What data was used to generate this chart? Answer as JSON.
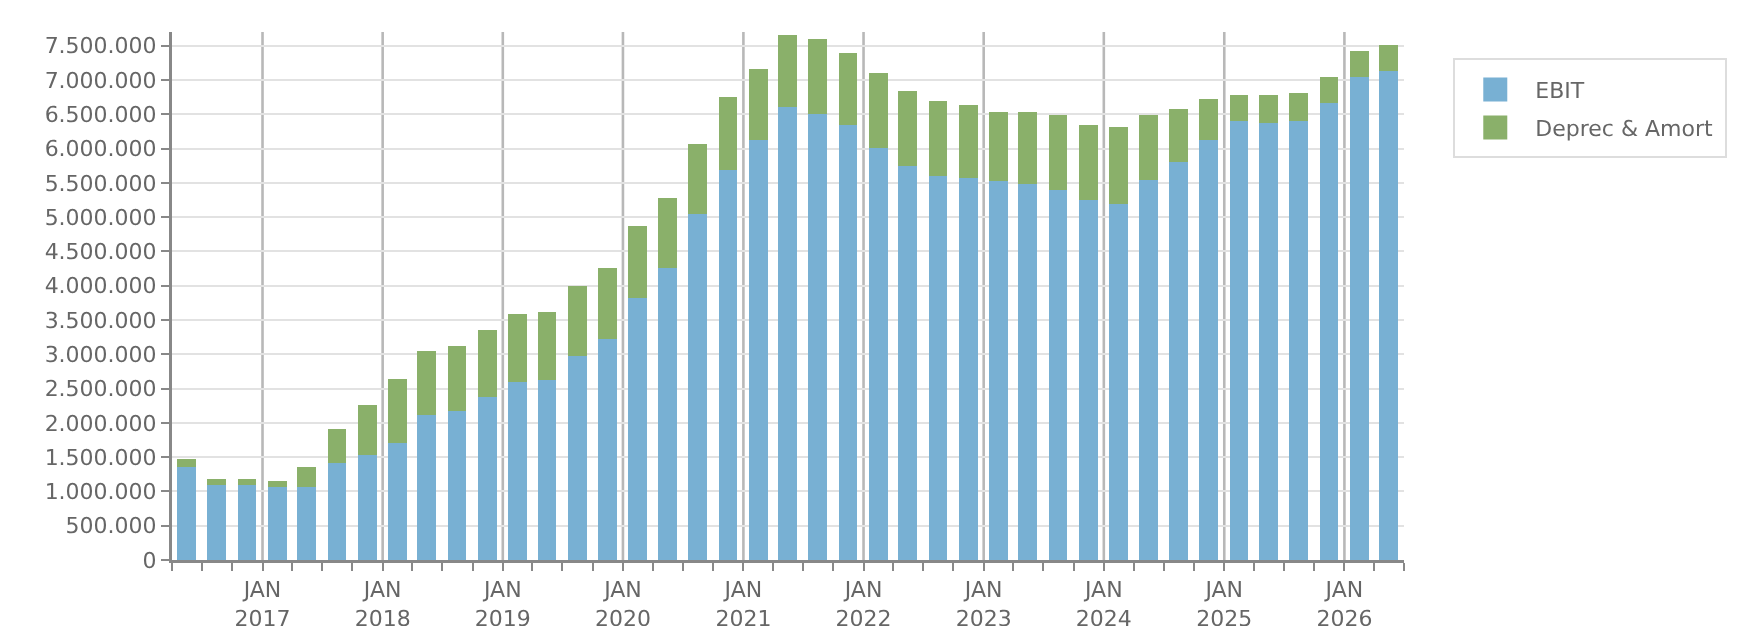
{
  "chart_data": {
    "type": "bar",
    "stacked": true,
    "x": [
      "2016-05-15",
      "2016-08-15",
      "2016-11-15",
      "2017-02-15",
      "2017-05-15",
      "2017-08-15",
      "2017-11-15",
      "2018-02-15",
      "2018-05-15",
      "2018-08-15",
      "2018-11-15",
      "2019-02-15",
      "2019-05-15",
      "2019-08-15",
      "2019-11-15",
      "2020-02-15",
      "2020-05-15",
      "2020-08-15",
      "2020-11-15",
      "2021-02-15",
      "2021-05-15",
      "2021-08-15",
      "2021-11-15",
      "2022-02-15",
      "2022-05-15",
      "2022-08-15",
      "2022-11-15",
      "2023-02-15",
      "2023-05-15",
      "2023-08-15",
      "2023-11-15",
      "2024-02-15",
      "2024-05-15",
      "2024-08-15",
      "2024-11-15",
      "2025-02-15",
      "2025-05-15",
      "2025-08-15",
      "2025-11-15",
      "2026-02-15",
      "2026-05-15"
    ],
    "series": [
      {
        "name": "EBIT",
        "color": "#78b0d3",
        "values": [
          1360000,
          1100000,
          1100000,
          1065000,
          1065000,
          1415000,
          1535000,
          1710000,
          2120000,
          2180000,
          2380000,
          2590000,
          2620000,
          2970000,
          3230000,
          3820000,
          4260000,
          5050000,
          5690000,
          6130000,
          6600000,
          6510000,
          6340000,
          6015000,
          5750000,
          5605000,
          5575000,
          5520000,
          5490000,
          5400000,
          5255000,
          5195000,
          5545000,
          5810000,
          6130000,
          6400000,
          6370000,
          6400000,
          6660000,
          7040000,
          7130000
        ]
      },
      {
        "name": "Deprec & Amort",
        "color": "#8ab06a",
        "values": [
          115000,
          80000,
          80000,
          85000,
          295000,
          495000,
          730000,
          935000,
          935000,
          935000,
          970000,
          995000,
          995000,
          1025000,
          1030000,
          1050000,
          1020000,
          1020000,
          1060000,
          1030000,
          1060000,
          1090000,
          1050000,
          1085000,
          1085000,
          1085000,
          1055000,
          1020000,
          1050000,
          1085000,
          1085000,
          1115000,
          940000,
          760000,
          590000,
          380000,
          410000,
          405000,
          380000,
          380000,
          380000
        ]
      }
    ],
    "xlim": [
      "2016-04-01",
      "2026-07-01"
    ],
    "xticks": [
      {
        "value": "2016-04-01",
        "label": null
      },
      {
        "value": "2016-07-01",
        "label": null
      },
      {
        "value": "2016-10-01",
        "label": null
      },
      {
        "value": "2017-01-01",
        "label": "JAN\n2017"
      },
      {
        "value": "2017-04-01",
        "label": null
      },
      {
        "value": "2017-07-01",
        "label": null
      },
      {
        "value": "2017-10-01",
        "label": null
      },
      {
        "value": "2018-01-01",
        "label": "JAN\n2018"
      },
      {
        "value": "2018-04-01",
        "label": null
      },
      {
        "value": "2018-07-01",
        "label": null
      },
      {
        "value": "2018-10-01",
        "label": null
      },
      {
        "value": "2019-01-01",
        "label": "JAN\n2019"
      },
      {
        "value": "2019-04-01",
        "label": null
      },
      {
        "value": "2019-07-01",
        "label": null
      },
      {
        "value": "2019-10-01",
        "label": null
      },
      {
        "value": "2020-01-01",
        "label": "JAN\n2020"
      },
      {
        "value": "2020-04-01",
        "label": null
      },
      {
        "value": "2020-07-01",
        "label": null
      },
      {
        "value": "2020-10-01",
        "label": null
      },
      {
        "value": "2021-01-01",
        "label": "JAN\n2021"
      },
      {
        "value": "2021-04-01",
        "label": null
      },
      {
        "value": "2021-07-01",
        "label": null
      },
      {
        "value": "2021-10-01",
        "label": null
      },
      {
        "value": "2022-01-01",
        "label": "JAN\n2022"
      },
      {
        "value": "2022-04-01",
        "label": null
      },
      {
        "value": "2022-07-01",
        "label": null
      },
      {
        "value": "2022-10-01",
        "label": null
      },
      {
        "value": "2023-01-01",
        "label": "JAN\n2023"
      },
      {
        "value": "2023-04-01",
        "label": null
      },
      {
        "value": "2023-07-01",
        "label": null
      },
      {
        "value": "2023-10-01",
        "label": null
      },
      {
        "value": "2024-01-01",
        "label": "JAN\n2024"
      },
      {
        "value": "2024-04-01",
        "label": null
      },
      {
        "value": "2024-07-01",
        "label": null
      },
      {
        "value": "2024-10-01",
        "label": null
      },
      {
        "value": "2025-01-01",
        "label": "JAN\n2025"
      },
      {
        "value": "2025-04-01",
        "label": null
      },
      {
        "value": "2025-07-01",
        "label": null
      },
      {
        "value": "2025-10-01",
        "label": null
      },
      {
        "value": "2026-01-01",
        "label": "JAN\n2026"
      },
      {
        "value": "2026-04-01",
        "label": null
      },
      {
        "value": "2026-07-01",
        "label": null
      }
    ],
    "ylim": [
      0,
      7700000
    ],
    "yticks": [
      0,
      {
        "value": 500000,
        "label": "500.000"
      },
      {
        "value": 1000000,
        "label": "1.000.000"
      },
      {
        "value": 1500000,
        "label": "1.500.000"
      },
      {
        "value": 2000000,
        "label": "2.000.000"
      },
      {
        "value": 2500000,
        "label": "2.500.000"
      },
      {
        "value": 3000000,
        "label": "3.000.000"
      },
      {
        "value": 3500000,
        "label": "3.500.000"
      },
      {
        "value": 4000000,
        "label": "4.000.000"
      },
      {
        "value": 4500000,
        "label": "4.500.000"
      },
      {
        "value": 5000000,
        "label": "5.000.000"
      },
      {
        "value": 5500000,
        "label": "5.500.000"
      },
      {
        "value": 6000000,
        "label": "6.000.000"
      },
      {
        "value": 6500000,
        "label": "6.500.000"
      },
      {
        "value": 7000000,
        "label": "7.000.000"
      },
      {
        "value": 7500000,
        "label": "7.500.000"
      }
    ],
    "grid": true,
    "legend": "top right"
  }
}
